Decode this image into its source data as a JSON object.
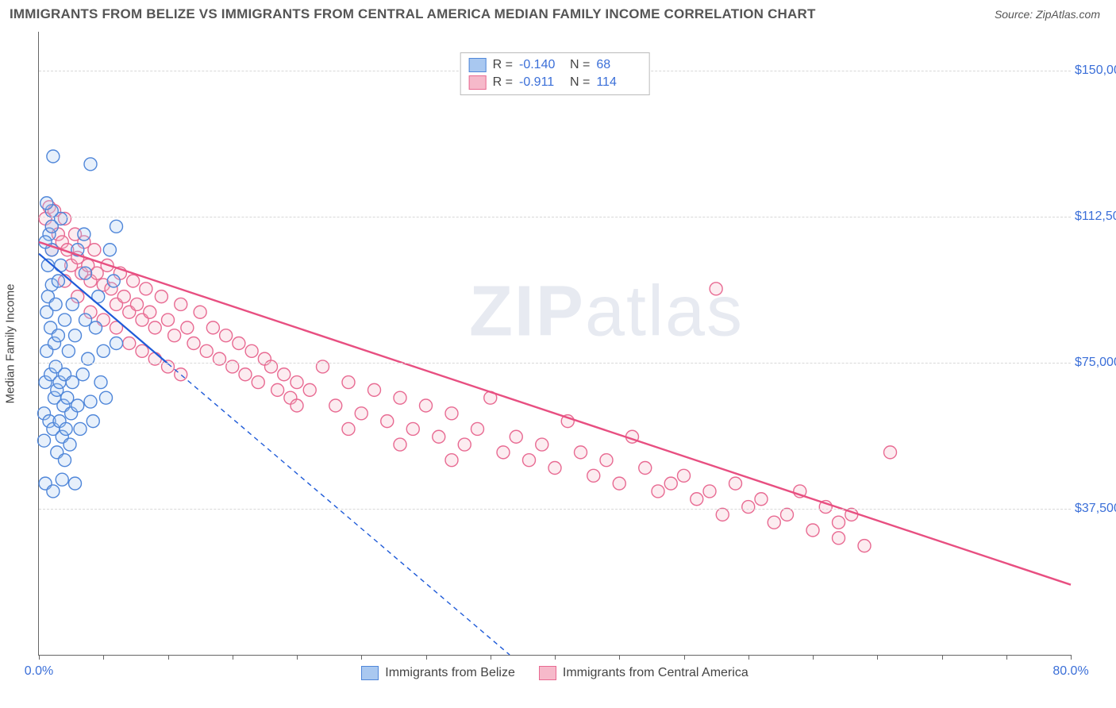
{
  "header": {
    "title": "IMMIGRANTS FROM BELIZE VS IMMIGRANTS FROM CENTRAL AMERICA MEDIAN FAMILY INCOME CORRELATION CHART",
    "source": "Source: ZipAtlas.com"
  },
  "chart": {
    "type": "scatter",
    "background_color": "#ffffff",
    "grid_color": "#d8d8d8",
    "axis_color": "#666666",
    "y_label": "Median Family Income",
    "y_label_fontsize": 15,
    "xlim": [
      0,
      80
    ],
    "ylim": [
      0,
      160000
    ],
    "x_ticks_pct": [
      0,
      5,
      10,
      15,
      20,
      25,
      30,
      35,
      40,
      45,
      50,
      55,
      60,
      65,
      70,
      75,
      80
    ],
    "x_tick_labels": {
      "0": "0.0%",
      "80": "80.0%"
    },
    "y_ticks": [
      37500,
      75000,
      112500,
      150000
    ],
    "y_tick_labels": {
      "37500": "$37,500",
      "75000": "$75,000",
      "112500": "$112,500",
      "150000": "$150,000"
    },
    "tick_label_color": "#3b6fd8",
    "tick_label_fontsize": 16,
    "marker_radius": 8,
    "marker_fill_opacity": 0.28,
    "marker_stroke_width": 1.4,
    "watermark": {
      "bold": "ZIP",
      "light": "atlas",
      "color": "rgba(120,140,180,0.18)",
      "fontsize": 90
    }
  },
  "series": {
    "belize": {
      "label": "Immigrants from Belize",
      "color_fill": "#a9c8f0",
      "color_stroke": "#4f86d9",
      "R": "-0.140",
      "N": "68",
      "trend": {
        "x1": 0,
        "y1": 103000,
        "x2": 36.5,
        "y2": 0,
        "solid_until_x": 10,
        "color": "#1f5bd8",
        "width": 2.2,
        "dash": "6,5"
      },
      "points": [
        [
          0.4,
          55000
        ],
        [
          0.4,
          62000
        ],
        [
          0.5,
          44000
        ],
        [
          0.5,
          70000
        ],
        [
          0.6,
          78000
        ],
        [
          0.6,
          88000
        ],
        [
          0.7,
          92000
        ],
        [
          0.7,
          100000
        ],
        [
          0.8,
          108000
        ],
        [
          0.8,
          60000
        ],
        [
          0.9,
          72000
        ],
        [
          0.9,
          84000
        ],
        [
          1.0,
          95000
        ],
        [
          1.0,
          110000
        ],
        [
          1.0,
          104000
        ],
        [
          1.1,
          128000
        ],
        [
          1.1,
          58000
        ],
        [
          1.1,
          42000
        ],
        [
          1.2,
          66000
        ],
        [
          1.2,
          80000
        ],
        [
          1.3,
          90000
        ],
        [
          1.3,
          74000
        ],
        [
          1.4,
          68000
        ],
        [
          1.4,
          52000
        ],
        [
          1.5,
          82000
        ],
        [
          1.5,
          96000
        ],
        [
          1.6,
          60000
        ],
        [
          1.6,
          70000
        ],
        [
          1.7,
          100000
        ],
        [
          1.7,
          112000
        ],
        [
          1.8,
          56000
        ],
        [
          1.8,
          45000
        ],
        [
          1.9,
          64000
        ],
        [
          2.0,
          86000
        ],
        [
          2.0,
          72000
        ],
        [
          2.1,
          58000
        ],
        [
          2.2,
          66000
        ],
        [
          2.3,
          78000
        ],
        [
          2.4,
          54000
        ],
        [
          2.5,
          62000
        ],
        [
          2.6,
          70000
        ],
        [
          2.6,
          90000
        ],
        [
          2.8,
          82000
        ],
        [
          2.8,
          44000
        ],
        [
          3.0,
          104000
        ],
        [
          3.0,
          64000
        ],
        [
          3.2,
          58000
        ],
        [
          3.4,
          72000
        ],
        [
          3.5,
          108000
        ],
        [
          3.6,
          98000
        ],
        [
          3.6,
          86000
        ],
        [
          3.8,
          76000
        ],
        [
          4.0,
          65000
        ],
        [
          4.0,
          126000
        ],
        [
          4.2,
          60000
        ],
        [
          4.4,
          84000
        ],
        [
          4.6,
          92000
        ],
        [
          4.8,
          70000
        ],
        [
          5.0,
          78000
        ],
        [
          5.2,
          66000
        ],
        [
          5.5,
          104000
        ],
        [
          5.8,
          96000
        ],
        [
          6.0,
          80000
        ],
        [
          6.0,
          110000
        ],
        [
          1.0,
          114000
        ],
        [
          0.6,
          116000
        ],
        [
          0.5,
          106000
        ],
        [
          2.0,
          50000
        ]
      ]
    },
    "central_america": {
      "label": "Immigrants from Central America",
      "color_fill": "#f6b9ca",
      "color_stroke": "#e86a92",
      "R": "-0.911",
      "N": "114",
      "trend": {
        "x1": 0,
        "y1": 106000,
        "x2": 80,
        "y2": 18000,
        "color": "#e84f81",
        "width": 2.4
      },
      "points": [
        [
          0.5,
          112000
        ],
        [
          0.8,
          115000
        ],
        [
          1.0,
          110000
        ],
        [
          1.2,
          114000
        ],
        [
          1.5,
          108000
        ],
        [
          1.8,
          106000
        ],
        [
          2.0,
          112000
        ],
        [
          2.2,
          104000
        ],
        [
          2.5,
          100000
        ],
        [
          2.8,
          108000
        ],
        [
          3.0,
          102000
        ],
        [
          3.3,
          98000
        ],
        [
          3.5,
          106000
        ],
        [
          3.8,
          100000
        ],
        [
          4.0,
          96000
        ],
        [
          4.3,
          104000
        ],
        [
          4.5,
          98000
        ],
        [
          5.0,
          95000
        ],
        [
          5.3,
          100000
        ],
        [
          5.6,
          94000
        ],
        [
          6.0,
          90000
        ],
        [
          6.3,
          98000
        ],
        [
          6.6,
          92000
        ],
        [
          7.0,
          88000
        ],
        [
          7.3,
          96000
        ],
        [
          7.6,
          90000
        ],
        [
          8.0,
          86000
        ],
        [
          8.3,
          94000
        ],
        [
          8.6,
          88000
        ],
        [
          9.0,
          84000
        ],
        [
          9.5,
          92000
        ],
        [
          10.0,
          86000
        ],
        [
          10.5,
          82000
        ],
        [
          11.0,
          90000
        ],
        [
          11.5,
          84000
        ],
        [
          12.0,
          80000
        ],
        [
          12.5,
          88000
        ],
        [
          13.0,
          78000
        ],
        [
          13.5,
          84000
        ],
        [
          14.0,
          76000
        ],
        [
          14.5,
          82000
        ],
        [
          15.0,
          74000
        ],
        [
          15.5,
          80000
        ],
        [
          16.0,
          72000
        ],
        [
          16.5,
          78000
        ],
        [
          17.0,
          70000
        ],
        [
          17.5,
          76000
        ],
        [
          18.0,
          74000
        ],
        [
          18.5,
          68000
        ],
        [
          19.0,
          72000
        ],
        [
          19.5,
          66000
        ],
        [
          20.0,
          70000
        ],
        [
          21.0,
          68000
        ],
        [
          22.0,
          74000
        ],
        [
          23.0,
          64000
        ],
        [
          24.0,
          70000
        ],
        [
          25.0,
          62000
        ],
        [
          26.0,
          68000
        ],
        [
          27.0,
          60000
        ],
        [
          28.0,
          66000
        ],
        [
          29.0,
          58000
        ],
        [
          30.0,
          64000
        ],
        [
          31.0,
          56000
        ],
        [
          32.0,
          62000
        ],
        [
          33.0,
          54000
        ],
        [
          34.0,
          58000
        ],
        [
          35.0,
          66000
        ],
        [
          36.0,
          52000
        ],
        [
          37.0,
          56000
        ],
        [
          38.0,
          50000
        ],
        [
          39.0,
          54000
        ],
        [
          40.0,
          48000
        ],
        [
          41.0,
          60000
        ],
        [
          42.0,
          52000
        ],
        [
          43.0,
          46000
        ],
        [
          44.0,
          50000
        ],
        [
          45.0,
          44000
        ],
        [
          46.0,
          56000
        ],
        [
          47.0,
          48000
        ],
        [
          48.0,
          42000
        ],
        [
          49.0,
          44000
        ],
        [
          50.0,
          46000
        ],
        [
          51.0,
          40000
        ],
        [
          52.0,
          42000
        ],
        [
          52.5,
          94000
        ],
        [
          53.0,
          36000
        ],
        [
          54.0,
          44000
        ],
        [
          55.0,
          38000
        ],
        [
          56.0,
          40000
        ],
        [
          57.0,
          34000
        ],
        [
          58.0,
          36000
        ],
        [
          59.0,
          42000
        ],
        [
          60.0,
          32000
        ],
        [
          61.0,
          38000
        ],
        [
          62.0,
          30000
        ],
        [
          62.0,
          34000
        ],
        [
          63.0,
          36000
        ],
        [
          64.0,
          28000
        ],
        [
          66.0,
          52000
        ],
        [
          1.0,
          104000
        ],
        [
          2.0,
          96000
        ],
        [
          3.0,
          92000
        ],
        [
          4.0,
          88000
        ],
        [
          5.0,
          86000
        ],
        [
          6.0,
          84000
        ],
        [
          7.0,
          80000
        ],
        [
          8.0,
          78000
        ],
        [
          9.0,
          76000
        ],
        [
          10.0,
          74000
        ],
        [
          11.0,
          72000
        ],
        [
          20.0,
          64000
        ],
        [
          24.0,
          58000
        ],
        [
          28.0,
          54000
        ],
        [
          32.0,
          50000
        ]
      ]
    }
  }
}
